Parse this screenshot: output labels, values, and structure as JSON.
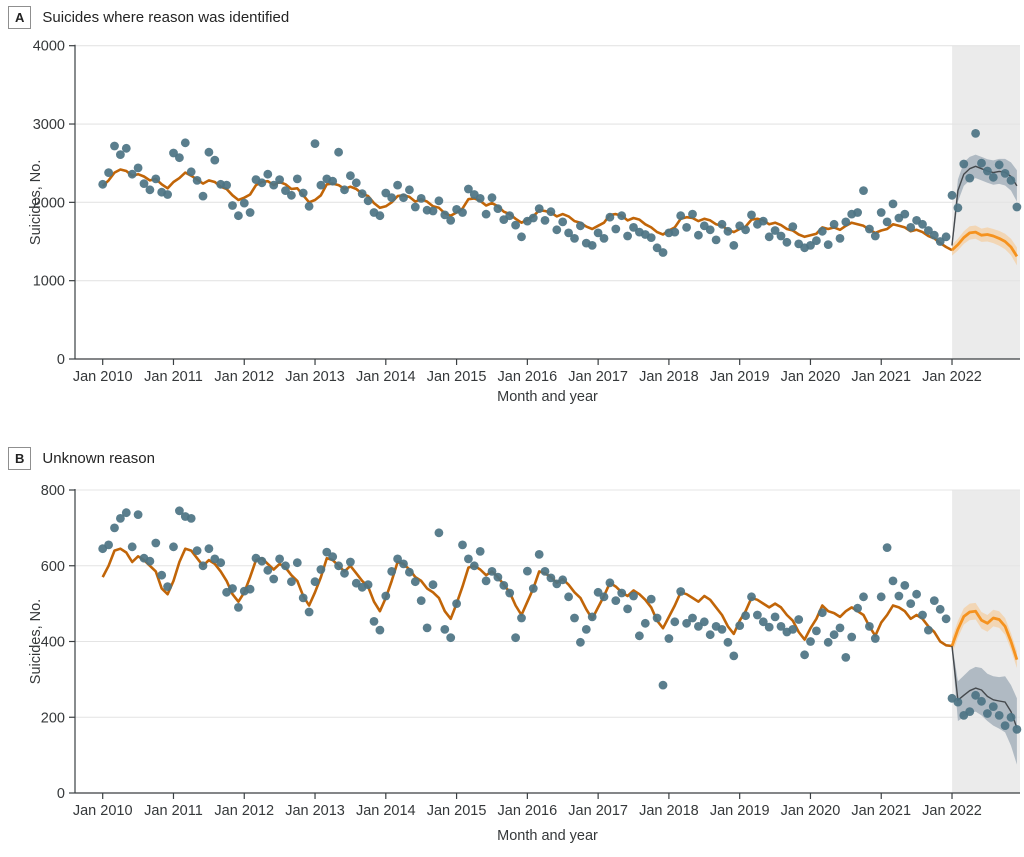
{
  "colors": {
    "dot": "#4d7484",
    "fitted_line": "#c16508",
    "forecast_line": "#f5921e",
    "forecast_band": "#f8c488",
    "post_line": "#45494d",
    "post_band": "#8d9dab",
    "shaded_region": "#ebebeb",
    "grid": "#e4e4e4",
    "axis": "#3a3f42",
    "text": "#35383a"
  },
  "chart_data": [
    {
      "type": "scatter",
      "panel_label": "A",
      "title": "Suicides where reason was identified",
      "ylabel": "Suicides, No.",
      "xlabel": "Month and year",
      "ylim": [
        0,
        4000
      ],
      "yticks": [
        0,
        1000,
        2000,
        3000,
        4000
      ],
      "x_tick_labels": [
        "Jan 2010",
        "Jan 2011",
        "Jan 2012",
        "Jan 2013",
        "Jan 2014",
        "Jan 2015",
        "Jan 2016",
        "Jan 2017",
        "Jan 2018",
        "Jan 2019",
        "Jan 2020",
        "Jan 2021",
        "Jan 2022"
      ],
      "x_monthly_start": "2010-01",
      "x_monthly_end": "2022-12",
      "forecast_start": "2022-01",
      "observed": [
        2230,
        2380,
        2720,
        2610,
        2690,
        2360,
        2440,
        2240,
        2160,
        2300,
        2130,
        2100,
        2630,
        2570,
        2760,
        2390,
        2280,
        2080,
        2640,
        2540,
        2230,
        2220,
        1960,
        1830,
        1990,
        1870,
        2290,
        2250,
        2360,
        2220,
        2290,
        2150,
        2090,
        2300,
        2120,
        1950,
        2750,
        2220,
        2300,
        2270,
        2640,
        2160,
        2340,
        2250,
        2110,
        2020,
        1870,
        1830,
        2120,
        2060,
        2220,
        2060,
        2160,
        1940,
        2050,
        1900,
        1890,
        2020,
        1840,
        1770,
        1910,
        1870,
        2170,
        2100,
        2050,
        1850,
        2060,
        1920,
        1780,
        1830,
        1710,
        1560,
        1760,
        1800,
        1920,
        1770,
        1880,
        1650,
        1750,
        1610,
        1540,
        1700,
        1480,
        1450,
        1610,
        1540,
        1810,
        1660,
        1830,
        1570,
        1680,
        1620,
        1590,
        1550,
        1420,
        1360,
        1610,
        1620,
        1830,
        1680,
        1850,
        1580,
        1700,
        1650,
        1520,
        1720,
        1630,
        1450,
        1700,
        1650,
        1840,
        1720,
        1760,
        1560,
        1640,
        1570,
        1490,
        1690,
        1470,
        1420,
        1450,
        1510,
        1630,
        1460,
        1720,
        1540,
        1750,
        1850,
        1870,
        2150,
        1660,
        1570,
        1870,
        1750,
        1980,
        1800,
        1850,
        1680,
        1770,
        1720,
        1640,
        1580,
        1500,
        1560,
        2090,
        1930,
        2490,
        2310,
        2880,
        2500,
        2400,
        2320,
        2480,
        2370,
        2280,
        1940
      ],
      "fitted": [
        2210,
        2280,
        2380,
        2420,
        2400,
        2340,
        2360,
        2330,
        2280,
        2300,
        2230,
        2180,
        2260,
        2310,
        2380,
        2340,
        2290,
        2240,
        2280,
        2260,
        2200,
        2170,
        2090,
        2030,
        2060,
        2100,
        2220,
        2260,
        2270,
        2220,
        2260,
        2230,
        2170,
        2180,
        2090,
        2000,
        2030,
        2090,
        2230,
        2240,
        2220,
        2170,
        2200,
        2170,
        2110,
        2080,
        1990,
        1930,
        1950,
        2000,
        2080,
        2090,
        2070,
        2010,
        2040,
        2010,
        1950,
        1930,
        1860,
        1830,
        1870,
        1920,
        2040,
        2050,
        2020,
        1960,
        1990,
        1950,
        1880,
        1850,
        1790,
        1740,
        1780,
        1820,
        1900,
        1890,
        1870,
        1820,
        1850,
        1820,
        1760,
        1740,
        1690,
        1660,
        1700,
        1740,
        1840,
        1850,
        1830,
        1770,
        1800,
        1780,
        1720,
        1680,
        1620,
        1590,
        1640,
        1680,
        1790,
        1810,
        1800,
        1760,
        1790,
        1770,
        1720,
        1700,
        1650,
        1620,
        1660,
        1690,
        1780,
        1790,
        1770,
        1720,
        1740,
        1710,
        1660,
        1640,
        1590,
        1560,
        1580,
        1600,
        1680,
        1660,
        1680,
        1650,
        1700,
        1740,
        1720,
        1700,
        1650,
        1610,
        1640,
        1660,
        1720,
        1700,
        1680,
        1630,
        1650,
        1620,
        1570,
        1540,
        1480,
        1430,
        1390
      ],
      "forecast": {
        "mean": [
          1390,
          1460,
          1550,
          1610,
          1620,
          1580,
          1590,
          1570,
          1540,
          1500,
          1430,
          1310
        ],
        "lower": [
          1320,
          1385,
          1470,
          1525,
          1535,
          1495,
          1500,
          1480,
          1445,
          1400,
          1325,
          1195
        ],
        "upper": [
          1460,
          1535,
          1630,
          1695,
          1705,
          1665,
          1680,
          1660,
          1635,
          1600,
          1535,
          1425
        ]
      },
      "post_trend": {
        "mean": [
          1450,
          2150,
          2360,
          2430,
          2460,
          2430,
          2400,
          2380,
          2395,
          2385,
          2330,
          2210
        ],
        "lower": [
          1410,
          2010,
          2210,
          2280,
          2310,
          2280,
          2250,
          2225,
          2235,
          2215,
          2150,
          2010
        ],
        "upper": [
          1490,
          2290,
          2510,
          2580,
          2610,
          2580,
          2550,
          2535,
          2555,
          2555,
          2510,
          2410
        ]
      }
    },
    {
      "type": "scatter",
      "panel_label": "B",
      "title": "Unknown reason",
      "ylabel": "Suicides, No.",
      "xlabel": "Month and year",
      "ylim": [
        0,
        800
      ],
      "yticks": [
        0,
        200,
        400,
        600,
        800
      ],
      "x_tick_labels": [
        "Jan 2010",
        "Jan 2011",
        "Jan 2012",
        "Jan 2013",
        "Jan 2014",
        "Jan 2015",
        "Jan 2016",
        "Jan 2017",
        "Jan 2018",
        "Jan 2019",
        "Jan 2020",
        "Jan 2021",
        "Jan 2022"
      ],
      "x_monthly_start": "2010-01",
      "x_monthly_end": "2022-12",
      "forecast_start": "2022-01",
      "observed": [
        645,
        655,
        700,
        725,
        740,
        650,
        735,
        620,
        612,
        660,
        575,
        545,
        650,
        745,
        730,
        725,
        640,
        600,
        645,
        618,
        608,
        530,
        540,
        490,
        533,
        538,
        620,
        612,
        588,
        565,
        618,
        600,
        558,
        608,
        515,
        478,
        558,
        590,
        636,
        624,
        600,
        580,
        610,
        554,
        543,
        550,
        453,
        430,
        520,
        585,
        618,
        605,
        583,
        558,
        508,
        436,
        550,
        687,
        432,
        410,
        500,
        655,
        618,
        600,
        638,
        560,
        585,
        570,
        548,
        528,
        410,
        462,
        586,
        540,
        630,
        585,
        568,
        552,
        563,
        518,
        462,
        398,
        432,
        465,
        530,
        518,
        555,
        508,
        528,
        486,
        520,
        415,
        448,
        512,
        462,
        285,
        408,
        452,
        532,
        448,
        462,
        440,
        452,
        418,
        440,
        432,
        398,
        362,
        442,
        468,
        518,
        470,
        452,
        438,
        465,
        440,
        425,
        432,
        458,
        365,
        400,
        428,
        476,
        398,
        418,
        436,
        358,
        412,
        488,
        518,
        440,
        408,
        518,
        648,
        560,
        520,
        548,
        500,
        525,
        470,
        430,
        508,
        485,
        460,
        250,
        240,
        205,
        215,
        258,
        242,
        210,
        228,
        205,
        178,
        200,
        168
      ],
      "fitted": [
        570,
        600,
        640,
        645,
        635,
        610,
        625,
        615,
        600,
        585,
        540,
        525,
        560,
        610,
        645,
        640,
        620,
        600,
        615,
        605,
        585,
        560,
        525,
        505,
        530,
        570,
        615,
        620,
        605,
        590,
        605,
        595,
        575,
        560,
        520,
        495,
        530,
        570,
        620,
        615,
        600,
        585,
        600,
        580,
        560,
        545,
        505,
        480,
        515,
        560,
        610,
        605,
        590,
        570,
        560,
        540,
        530,
        515,
        480,
        460,
        500,
        545,
        595,
        600,
        590,
        575,
        585,
        570,
        550,
        530,
        495,
        470,
        505,
        540,
        585,
        580,
        570,
        555,
        565,
        550,
        530,
        515,
        485,
        460,
        490,
        520,
        555,
        545,
        530,
        520,
        535,
        525,
        510,
        490,
        455,
        435,
        465,
        495,
        530,
        525,
        515,
        505,
        520,
        510,
        490,
        470,
        440,
        420,
        455,
        480,
        515,
        510,
        500,
        490,
        500,
        490,
        470,
        455,
        425,
        405,
        435,
        460,
        495,
        480,
        475,
        465,
        480,
        490,
        480,
        470,
        440,
        415,
        450,
        470,
        495,
        490,
        480,
        460,
        470,
        460,
        440,
        425,
        400,
        390,
        388
      ],
      "forecast": {
        "mean": [
          388,
          432,
          466,
          478,
          480,
          456,
          448,
          462,
          458,
          440,
          400,
          352
        ],
        "lower": [
          366,
          410,
          444,
          456,
          458,
          434,
          426,
          440,
          436,
          418,
          378,
          330
        ],
        "upper": [
          410,
          454,
          488,
          500,
          502,
          478,
          470,
          484,
          480,
          462,
          422,
          374
        ]
      },
      "post_trend": {
        "mean": [
          388,
          245,
          258,
          270,
          277,
          272,
          255,
          246,
          243,
          240,
          215,
          172
        ],
        "lower": [
          380,
          190,
          200,
          210,
          215,
          205,
          190,
          178,
          170,
          160,
          125,
          75
        ],
        "upper": [
          396,
          295,
          310,
          325,
          333,
          330,
          315,
          308,
          306,
          308,
          285,
          250
        ]
      }
    }
  ]
}
